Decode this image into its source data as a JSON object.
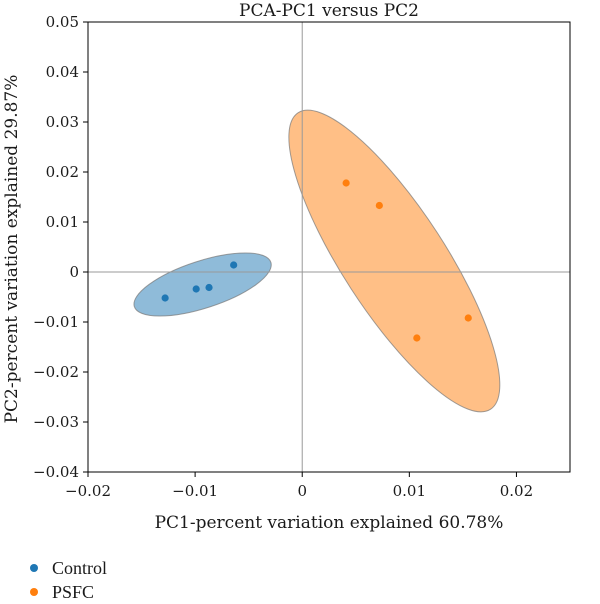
{
  "chart_data": {
    "type": "scatter",
    "title": "PCA-PC1 versus PC2",
    "xlabel": "PC1-percent variation explained 60.78%",
    "ylabel": "PC2-percent variation explained 29.87%",
    "xlim": [
      -0.02,
      0.025
    ],
    "ylim": [
      -0.04,
      0.05
    ],
    "xticks": [
      -0.02,
      -0.01,
      0,
      0.01,
      0.02
    ],
    "xtick_labels": [
      "−0.02",
      "−0.01",
      "0",
      "0.01",
      "0.02"
    ],
    "yticks": [
      -0.04,
      -0.03,
      -0.02,
      -0.01,
      0,
      0.01,
      0.02,
      0.03,
      0.04,
      0.05
    ],
    "ytick_labels": [
      "−0.04",
      "−0.03",
      "−0.02",
      "−0.01",
      "0",
      "0.01",
      "0.02",
      "0.03",
      "0.04",
      "0.05"
    ],
    "grid": false,
    "zero_lines": true,
    "legend_position": "bottom-left",
    "series": [
      {
        "name": "Control",
        "color": "#1f77b4",
        "x": [
          -0.0128,
          -0.0099,
          -0.0087,
          -0.0064
        ],
        "y": [
          -0.0052,
          -0.0034,
          -0.0031,
          0.0014
        ],
        "ellipse": {
          "cx": -0.0093,
          "cy": -0.0025,
          "angle_deg": 18,
          "rx_data": 0.0067,
          "ry_data": 0.0022
        }
      },
      {
        "name": "PSFC",
        "color": "#ff7f0e",
        "x": [
          0.0041,
          0.0072,
          0.0107,
          0.0155
        ],
        "y": [
          0.0178,
          0.0133,
          -0.0132,
          -0.0092
        ],
        "ellipse": {
          "cx": 0.0086,
          "cy": 0.0022,
          "angle_deg": -57,
          "rx_data": 0.0165,
          "ry_data": 0.0048
        }
      }
    ]
  },
  "legend": {
    "items": [
      {
        "label": "Control",
        "color": "#1f77b4"
      },
      {
        "label": "PSFC",
        "color": "#ff7f0e"
      }
    ]
  }
}
